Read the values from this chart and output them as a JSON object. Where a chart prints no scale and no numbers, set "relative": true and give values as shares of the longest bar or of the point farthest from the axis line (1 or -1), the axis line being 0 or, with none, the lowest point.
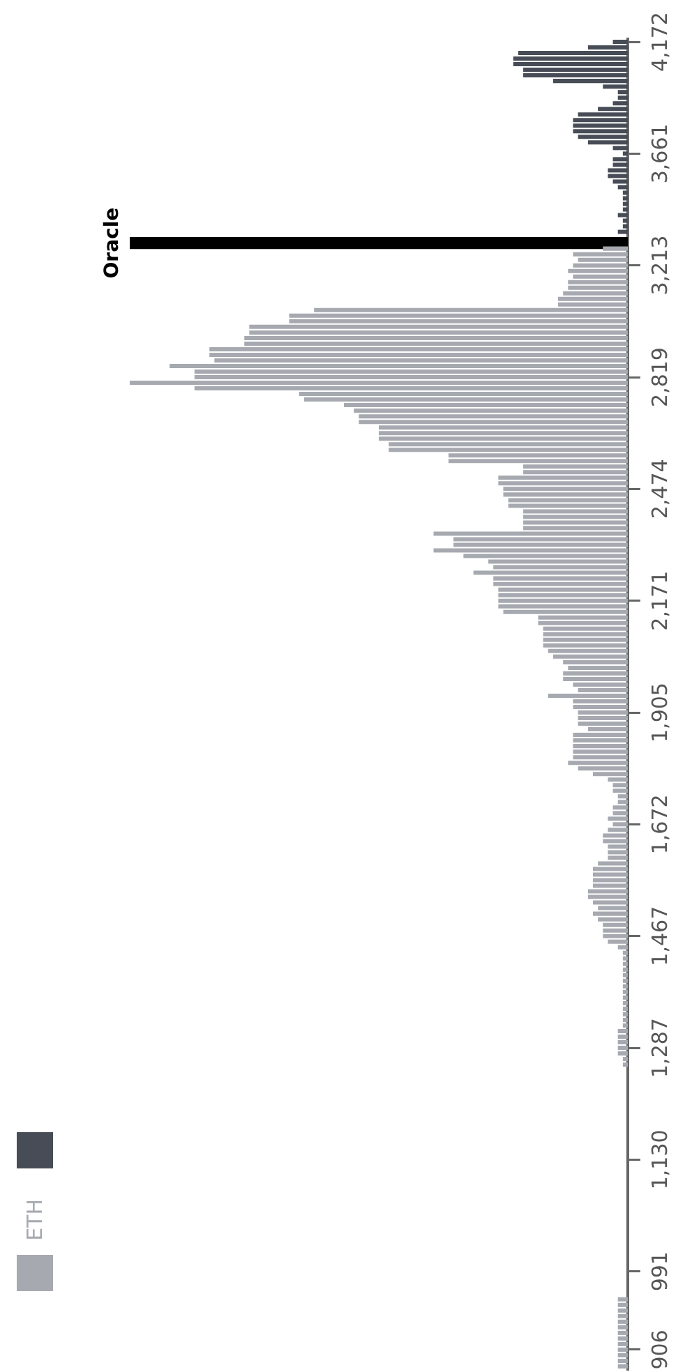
{
  "chart_data": {
    "type": "bar",
    "orientation": "horizontal",
    "relative": true,
    "legend": "left",
    "categories": [
      "4,172",
      null,
      null,
      null,
      null,
      null,
      null,
      null,
      null,
      null,
      null,
      null,
      null,
      null,
      null,
      null,
      null,
      null,
      null,
      null,
      "3,661",
      null,
      null,
      null,
      null,
      null,
      null,
      null,
      null,
      null,
      null,
      null,
      null,
      null,
      null,
      null,
      null,
      null,
      null,
      null,
      "3,213",
      null,
      null,
      null,
      null,
      null,
      null,
      null,
      null,
      null,
      null,
      null,
      null,
      null,
      null,
      null,
      null,
      null,
      null,
      null,
      "2,819",
      null,
      null,
      null,
      null,
      null,
      null,
      null,
      null,
      null,
      null,
      null,
      null,
      null,
      null,
      null,
      null,
      null,
      null,
      null,
      "2,474",
      null,
      null,
      null,
      null,
      null,
      null,
      null,
      null,
      null,
      null,
      null,
      null,
      null,
      null,
      null,
      null,
      null,
      null,
      null,
      "2,171",
      null,
      null,
      null,
      null,
      null,
      null,
      null,
      null,
      null,
      null,
      null,
      null,
      null,
      null,
      null,
      null,
      null,
      null,
      null,
      "1,905",
      null,
      null,
      null,
      null,
      null,
      null,
      null,
      null,
      null,
      null,
      null,
      null,
      null,
      null,
      null,
      null,
      null,
      null,
      null,
      "1,672",
      null,
      null,
      null,
      null,
      null,
      null,
      null,
      null,
      null,
      null,
      null,
      null,
      null,
      null,
      null,
      null,
      null,
      null,
      null,
      "1,467",
      null,
      null,
      null,
      null,
      null,
      null,
      null,
      null,
      null,
      null,
      null,
      null,
      null,
      null,
      null,
      null,
      null,
      null,
      null,
      "1,287",
      null,
      null,
      null,
      null,
      null,
      null,
      null,
      null,
      null,
      null,
      null,
      null,
      null,
      null,
      null,
      null,
      null,
      null,
      null,
      "1,130",
      null,
      null,
      null,
      null,
      null,
      null,
      null,
      null,
      null,
      null,
      null,
      null,
      null,
      null,
      null,
      null,
      null,
      null,
      null,
      "991",
      null,
      null,
      null,
      null,
      null,
      null,
      null,
      null,
      null,
      null,
      null,
      null,
      null,
      "906",
      null,
      null,
      null
    ],
    "series": [
      {
        "name": "ETH",
        "color": "#a6a9b0",
        "values": [
          null,
          null,
          null,
          null,
          null,
          null,
          null,
          null,
          null,
          null,
          null,
          null,
          null,
          null,
          null,
          null,
          null,
          null,
          null,
          null,
          null,
          null,
          null,
          null,
          null,
          null,
          null,
          null,
          null,
          null,
          null,
          null,
          null,
          null,
          null,
          null,
          null,
          0.05,
          0.11,
          0.1,
          0.11,
          0.12,
          0.11,
          0.12,
          0.12,
          0.13,
          0.14,
          0.14,
          0.63,
          0.68,
          0.68,
          0.76,
          0.76,
          0.77,
          0.77,
          0.84,
          0.84,
          0.83,
          0.92,
          0.87,
          0.87,
          1,
          0.87,
          0.66,
          0.65,
          0.57,
          0.55,
          0.54,
          0.54,
          0.5,
          0.5,
          0.5,
          0.48,
          0.48,
          0.36,
          0.36,
          0.21,
          0.21,
          0.26,
          0.26,
          0.25,
          0.25,
          0.24,
          0.24,
          0.21,
          0.21,
          0.21,
          0.21,
          0.39,
          0.35,
          0.35,
          0.39,
          0.33,
          0.28,
          0.27,
          0.31,
          0.27,
          0.27,
          0.26,
          0.26,
          0.26,
          0.26,
          0.25,
          0.18,
          0.18,
          0.17,
          0.17,
          0.17,
          0.17,
          0.16,
          0.15,
          0.13,
          0.12,
          0.13,
          0.13,
          0.11,
          0.1,
          0.16,
          0.11,
          0.11,
          0.1,
          0.1,
          0.1,
          0.08,
          0.11,
          0.11,
          0.11,
          0.11,
          0.11,
          0.12,
          0.1,
          0.07,
          0.04,
          0.03,
          0.03,
          0.02,
          0.02,
          0.03,
          0.03,
          0.04,
          0.03,
          0.04,
          0.05,
          0.05,
          0.04,
          0.04,
          0.04,
          0.06,
          0.07,
          0.07,
          0.07,
          0.07,
          0.08,
          0.08,
          0.07,
          0.06,
          0.07,
          0.06,
          0.05,
          0.05,
          0.05,
          0.04,
          0.02,
          0.01,
          0.01,
          0.01,
          0.01,
          0.01,
          0.01,
          0.01,
          0.01,
          0.01,
          0.01,
          0.01,
          0.01,
          0.01,
          0.01,
          0.02,
          0.02,
          0.02,
          0.02,
          0.02,
          0.01,
          0.01,
          0,
          0,
          0,
          0,
          0,
          0,
          0,
          0,
          0,
          0,
          0,
          0,
          0,
          0,
          0,
          0,
          0,
          0,
          0,
          0,
          0,
          0,
          0,
          0,
          0,
          0,
          0,
          0,
          0,
          0,
          0,
          0,
          0,
          0,
          0,
          0,
          0,
          0,
          0,
          0,
          0,
          0.02,
          0.02,
          0.02,
          0.02,
          0.02,
          0.02,
          0.02,
          0.02,
          0.02,
          0.02,
          0.02,
          0.02,
          0.02
        ]
      },
      {
        "color": "#474c56",
        "values": [
          0.03,
          0.08,
          0.22,
          0.23,
          0.23,
          0.21,
          0.21,
          0.15,
          0.05,
          0.02,
          0.02,
          0.03,
          0.06,
          0.1,
          0.11,
          0.11,
          0.11,
          0.1,
          0.08,
          0.03,
          0.01,
          0.03,
          0.03,
          0.04,
          0.04,
          0.03,
          0.02,
          0.01,
          0.01,
          0.01,
          0.01,
          0.02,
          0.01,
          0.01,
          0.02,
          null,
          null,
          null,
          null,
          null,
          null,
          null,
          null,
          null,
          null,
          null,
          null,
          null,
          null,
          null,
          null,
          null,
          null,
          null,
          null,
          null,
          null,
          null,
          null,
          null,
          null,
          null,
          null,
          null,
          null,
          null,
          null,
          null,
          null,
          null,
          null,
          null,
          null,
          null,
          null,
          null,
          null,
          null,
          null,
          null,
          null,
          null,
          null,
          null,
          null,
          null,
          null,
          null,
          null,
          null,
          null,
          null,
          null,
          null,
          null,
          null,
          null,
          null,
          null,
          null,
          null,
          null,
          null,
          null,
          null,
          null,
          null,
          null,
          null,
          null,
          null,
          null,
          null,
          null,
          null,
          null,
          null,
          null,
          null,
          null,
          null,
          null,
          null,
          null,
          null,
          null,
          null,
          null,
          null,
          null,
          null,
          null,
          null,
          null,
          null,
          null,
          null,
          null,
          null,
          null,
          null,
          null,
          null,
          null,
          null,
          null,
          null,
          null,
          null,
          null,
          null,
          null,
          null,
          null,
          null,
          null,
          null,
          null,
          null,
          null,
          null,
          null,
          null,
          null,
          null,
          null,
          null,
          null,
          null,
          null,
          null,
          null,
          null,
          null,
          null,
          null,
          null,
          null,
          null,
          null,
          null,
          null,
          null,
          null,
          null,
          null,
          null,
          null,
          null,
          null,
          null,
          null,
          null,
          null,
          null,
          null,
          null,
          null,
          null,
          null,
          null,
          null,
          null,
          null,
          null,
          null,
          null,
          null,
          null,
          null,
          null,
          null,
          null,
          null,
          null,
          null,
          null,
          null,
          null,
          null,
          null,
          null,
          null,
          null,
          null,
          null,
          null,
          null,
          null,
          null,
          null,
          null,
          null,
          null,
          null,
          null,
          null,
          null
        ]
      },
      {
        "name": "Oracle",
        "color": "#000000",
        "values": [
          null,
          null,
          null,
          null,
          null,
          null,
          null,
          null,
          null,
          null,
          null,
          null,
          null,
          null,
          null,
          null,
          null,
          null,
          null,
          null,
          null,
          null,
          null,
          null,
          null,
          null,
          null,
          null,
          null,
          null,
          null,
          null,
          null,
          null,
          null,
          null,
          1,
          null,
          null,
          null,
          null,
          null,
          null,
          null,
          null,
          null,
          null,
          null,
          null,
          null,
          null,
          null,
          null,
          null,
          null,
          null,
          null,
          null,
          null,
          null,
          null,
          null,
          null,
          null,
          null,
          null,
          null,
          null,
          null,
          null,
          null,
          null,
          null,
          null,
          null,
          null,
          null,
          null,
          null,
          null,
          null,
          null,
          null,
          null,
          null,
          null,
          null,
          null,
          null,
          null,
          null,
          null,
          null,
          null,
          null,
          null,
          null,
          null,
          null,
          null,
          null,
          null,
          null,
          null,
          null,
          null,
          null,
          null,
          null,
          null,
          null,
          null,
          null,
          null,
          null,
          null,
          null,
          null,
          null,
          null,
          null,
          null,
          null,
          null,
          null,
          null,
          null,
          null,
          null,
          null,
          null,
          null,
          null,
          null,
          null,
          null,
          null,
          null,
          null,
          null,
          null,
          null,
          null,
          null,
          null,
          null,
          null,
          null,
          null,
          null,
          null,
          null,
          null,
          null,
          null,
          null,
          null,
          null,
          null,
          null,
          null,
          null,
          null,
          null,
          null,
          null,
          null,
          null,
          null,
          null,
          null,
          null,
          null,
          null,
          null,
          null,
          null,
          null,
          null,
          null,
          null,
          null,
          null,
          null,
          null,
          null,
          null,
          null,
          null,
          null,
          null,
          null,
          null,
          null,
          null,
          null,
          null,
          null,
          null,
          null,
          null,
          null,
          null,
          null,
          null,
          null,
          null,
          null,
          null,
          null,
          null,
          null,
          null,
          null,
          null,
          null,
          null,
          null,
          null,
          null,
          null,
          null,
          null,
          null,
          null,
          null,
          null,
          null,
          null,
          null,
          null,
          null,
          null,
          null,
          null,
          null,
          null,
          null
        ]
      }
    ]
  }
}
